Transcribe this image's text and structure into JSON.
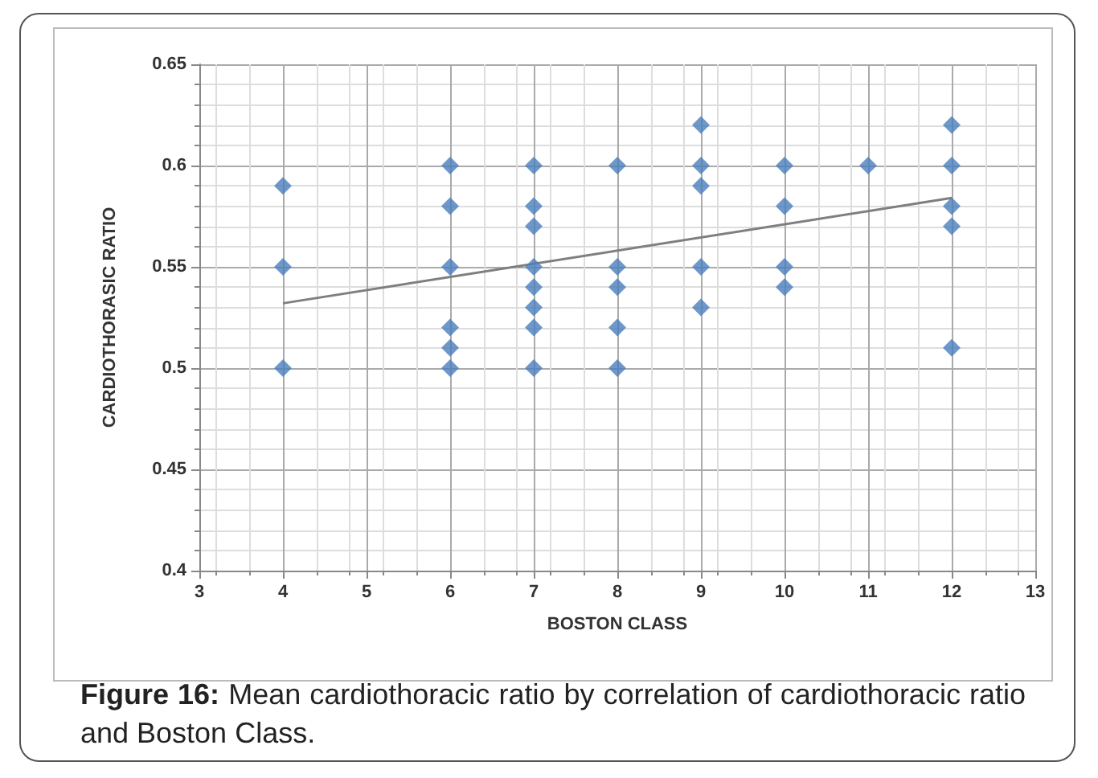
{
  "chart_data": {
    "type": "scatter",
    "xlabel": "BOSTON CLASS",
    "ylabel": "CARDIOTHORASIC RATIO",
    "annotations": [
      "Figure 16: Mean cardiothoracic ratio by correlation of cardiothoracic ratio and Boston Class."
    ],
    "series": [
      {
        "color": "#4a7ebb",
        "marker": "diamond",
        "x": [
          4,
          4,
          4,
          6,
          6,
          6,
          6,
          6,
          6,
          7,
          7,
          7,
          7,
          7,
          7,
          7,
          7,
          8,
          8,
          8,
          8,
          8,
          9,
          9,
          9,
          9,
          9,
          10,
          10,
          10,
          10,
          11,
          12,
          12,
          12,
          12,
          12
        ],
        "values": [
          0.59,
          0.55,
          0.5,
          0.6,
          0.58,
          0.55,
          0.52,
          0.51,
          0.5,
          0.6,
          0.58,
          0.57,
          0.55,
          0.54,
          0.53,
          0.52,
          0.5,
          0.6,
          0.55,
          0.54,
          0.52,
          0.5,
          0.62,
          0.6,
          0.59,
          0.55,
          0.53,
          0.6,
          0.58,
          0.55,
          0.54,
          0.6,
          0.62,
          0.6,
          0.58,
          0.57,
          0.51
        ]
      },
      {
        "type": "line",
        "color": "#7f7f7f",
        "marker": "none",
        "line_style": "solid",
        "x": [
          4,
          12
        ],
        "values": [
          0.532,
          0.584
        ]
      }
    ],
    "xlim": [
      3,
      13
    ],
    "xticks": [
      3,
      4,
      5,
      6,
      7,
      8,
      9,
      10,
      11,
      12,
      13
    ],
    "ylim": [
      0.4,
      0.65
    ],
    "yticks": [
      0.4,
      0.45,
      0.5,
      0.55,
      0.6,
      0.65
    ],
    "grid": true
  }
}
